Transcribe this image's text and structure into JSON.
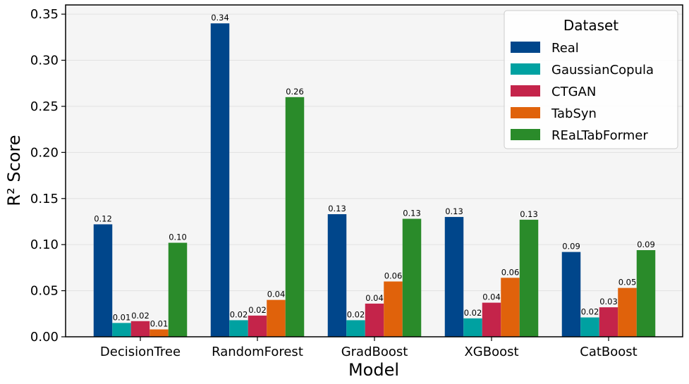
{
  "chart_data": {
    "type": "bar",
    "xlabel": "Model",
    "ylabel": "R² Score",
    "ylim": [
      0,
      0.36
    ],
    "yticks": [
      "0.00",
      "0.05",
      "0.10",
      "0.15",
      "0.20",
      "0.25",
      "0.30",
      "0.35"
    ],
    "ytick_values": [
      0,
      0.05,
      0.1,
      0.15,
      0.2,
      0.25,
      0.3,
      0.35
    ],
    "grid": "y",
    "categories": [
      "DecisionTree",
      "RandomForest",
      "GradBoost",
      "XGBoost",
      "CatBoost"
    ],
    "legend": {
      "title": "Dataset",
      "placement": "top-right"
    },
    "series": [
      {
        "name": "Real",
        "color": "#00468B",
        "values": [
          0.122,
          0.34,
          0.133,
          0.13,
          0.092
        ],
        "labels": [
          "0.12",
          "0.34",
          "0.13",
          "0.13",
          "0.09"
        ]
      },
      {
        "name": "GaussianCopula",
        "color": "#00A1A1",
        "values": [
          0.015,
          0.018,
          0.018,
          0.02,
          0.021
        ],
        "labels": [
          "0.01",
          "0.02",
          "0.02",
          "0.02",
          "0.02"
        ]
      },
      {
        "name": "CTGAN",
        "color": "#C4244A",
        "values": [
          0.017,
          0.023,
          0.036,
          0.037,
          0.032
        ],
        "labels": [
          "0.02",
          "0.02",
          "0.04",
          "0.04",
          "0.03"
        ]
      },
      {
        "name": "TabSyn",
        "color": "#E0620B",
        "values": [
          0.008,
          0.04,
          0.06,
          0.064,
          0.053
        ],
        "labels": [
          "0.01",
          "0.04",
          "0.06",
          "0.06",
          "0.05"
        ]
      },
      {
        "name": "REaLTabFormer",
        "color": "#2A8B2A",
        "values": [
          0.102,
          0.26,
          0.128,
          0.127,
          0.094
        ],
        "labels": [
          "0.10",
          "0.26",
          "0.13",
          "0.13",
          "0.09"
        ]
      }
    ]
  }
}
